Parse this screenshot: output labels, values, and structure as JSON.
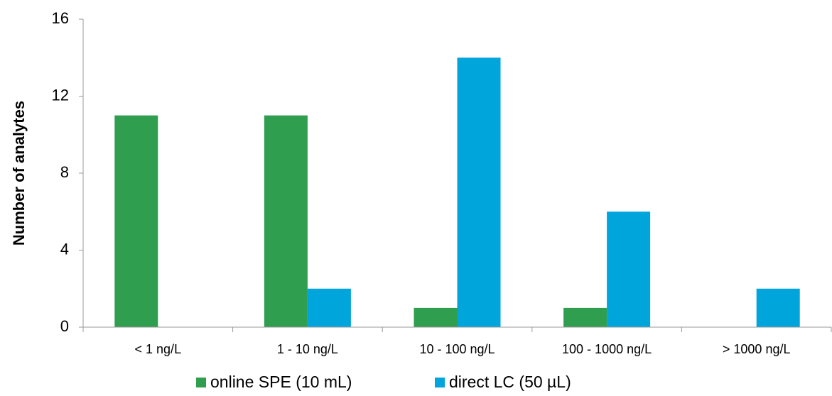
{
  "chart_data": {
    "type": "bar",
    "y_label": "Number of analytes",
    "categories": [
      "< 1 ng/L",
      "1 - 10 ng/L",
      "10 - 100 ng/L",
      "100 - 1000 ng/L",
      "> 1000 ng/L"
    ],
    "series": [
      {
        "name": "online SPE (10 mL)",
        "color": "#2f9e4f",
        "values": [
          11,
          11,
          1,
          1,
          0
        ]
      },
      {
        "name": "direct LC (50 µL)",
        "color": "#00a5dc",
        "values": [
          0,
          2,
          14,
          6,
          2
        ]
      }
    ],
    "ylim": [
      0,
      16
    ],
    "yticks": [
      0,
      4,
      8,
      12,
      16
    ],
    "legend": "bottom"
  }
}
